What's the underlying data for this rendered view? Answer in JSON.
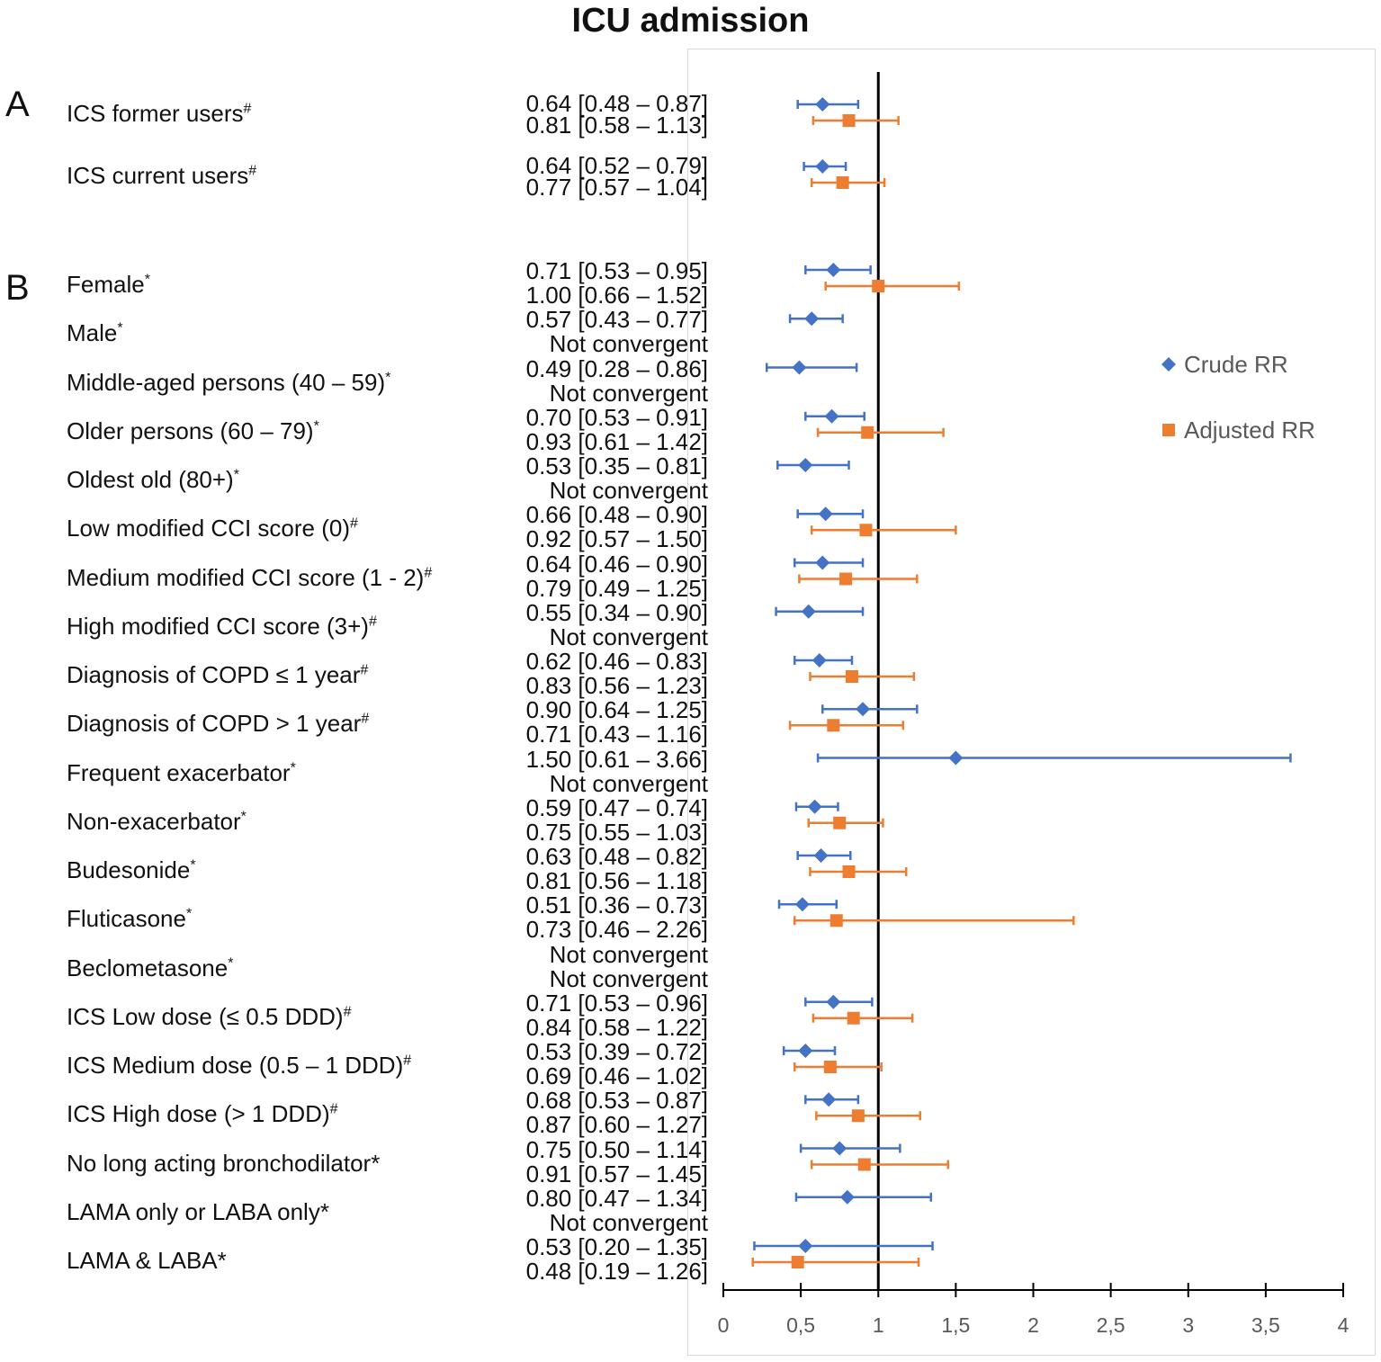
{
  "chart_data": {
    "type": "forest",
    "title": "ICU admission",
    "xlim": [
      0,
      4
    ],
    "x_ticks": [
      "0",
      "0,5",
      "1",
      "1,5",
      "2",
      "2,5",
      "3",
      "3,5",
      "4"
    ],
    "x_tick_values": [
      0,
      0.5,
      1,
      1.5,
      2,
      2.5,
      3,
      3.5,
      4
    ],
    "reference_line": 1,
    "legend": [
      {
        "name": "Crude RR",
        "marker": "diamond",
        "color": "#4472C4"
      },
      {
        "name": "Adjusted RR",
        "marker": "square",
        "color": "#ED7D31"
      }
    ],
    "sections": [
      {
        "label": "A",
        "rows": [
          {
            "label": "ICS former users",
            "sup": "#",
            "crude": {
              "text": "0.64 [0.48 – 0.87]",
              "est": 0.64,
              "lo": 0.48,
              "hi": 0.87
            },
            "adjusted": {
              "text": "0.81 [0.58 – 1.13]",
              "est": 0.81,
              "lo": 0.58,
              "hi": 1.13
            }
          },
          {
            "label": "ICS current users",
            "sup": "#",
            "crude": {
              "text": "0.64 [0.52 – 0.79]",
              "est": 0.64,
              "lo": 0.52,
              "hi": 0.79
            },
            "adjusted": {
              "text": "0.77 [0.57 – 1.04]",
              "est": 0.77,
              "lo": 0.57,
              "hi": 1.04
            }
          }
        ]
      },
      {
        "label": "B",
        "rows": [
          {
            "label": "Female",
            "sup": "*",
            "crude": {
              "text": "0.71 [0.53 – 0.95]",
              "est": 0.71,
              "lo": 0.53,
              "hi": 0.95
            },
            "adjusted": {
              "text": "1.00 [0.66 – 1.52]",
              "est": 1.0,
              "lo": 0.66,
              "hi": 1.52
            }
          },
          {
            "label": "Male",
            "sup": "*",
            "crude": {
              "text": "0.57 [0.43 – 0.77]",
              "est": 0.57,
              "lo": 0.43,
              "hi": 0.77
            },
            "adjusted": {
              "text": "Not convergent"
            }
          },
          {
            "label": "Middle-aged persons (40 – 59)",
            "sup": "*",
            "crude": {
              "text": "0.49 [0.28 – 0.86]",
              "est": 0.49,
              "lo": 0.28,
              "hi": 0.86
            },
            "adjusted": {
              "text": "Not convergent"
            }
          },
          {
            "label": "Older persons (60 – 79)",
            "sup": "*",
            "crude": {
              "text": "0.70 [0.53 – 0.91]",
              "est": 0.7,
              "lo": 0.53,
              "hi": 0.91
            },
            "adjusted": {
              "text": "0.93 [0.61 – 1.42]",
              "est": 0.93,
              "lo": 0.61,
              "hi": 1.42
            }
          },
          {
            "label": "Oldest old (80+)",
            "sup": "*",
            "crude": {
              "text": "0.53 [0.35 – 0.81]",
              "est": 0.53,
              "lo": 0.35,
              "hi": 0.81
            },
            "adjusted": {
              "text": "Not convergent"
            }
          },
          {
            "label": "Low modified CCI score (0)",
            "sup": "#",
            "crude": {
              "text": "0.66 [0.48 – 0.90]",
              "est": 0.66,
              "lo": 0.48,
              "hi": 0.9
            },
            "adjusted": {
              "text": "0.92 [0.57 – 1.50]",
              "est": 0.92,
              "lo": 0.57,
              "hi": 1.5
            }
          },
          {
            "label": "Medium modified CCI score (1 - 2)",
            "sup": "#",
            "crude": {
              "text": "0.64 [0.46 – 0.90]",
              "est": 0.64,
              "lo": 0.46,
              "hi": 0.9
            },
            "adjusted": {
              "text": "0.79 [0.49 – 1.25]",
              "est": 0.79,
              "lo": 0.49,
              "hi": 1.25
            }
          },
          {
            "label": "High modified CCI score (3+)",
            "sup": "#",
            "crude": {
              "text": "0.55 [0.34 – 0.90]",
              "est": 0.55,
              "lo": 0.34,
              "hi": 0.9
            },
            "adjusted": {
              "text": "Not convergent"
            }
          },
          {
            "label": "Diagnosis of  COPD ≤ 1 year",
            "sup": "#",
            "crude": {
              "text": "0.62 [0.46 – 0.83]",
              "est": 0.62,
              "lo": 0.46,
              "hi": 0.83
            },
            "adjusted": {
              "text": "0.83 [0.56 – 1.23]",
              "est": 0.83,
              "lo": 0.56,
              "hi": 1.23
            }
          },
          {
            "label": "Diagnosis of  COPD > 1 year",
            "sup": "#",
            "crude": {
              "text": "0.90 [0.64 – 1.25]",
              "est": 0.9,
              "lo": 0.64,
              "hi": 1.25
            },
            "adjusted": {
              "text": "0.71 [0.43 – 1.16]",
              "est": 0.71,
              "lo": 0.43,
              "hi": 1.16
            }
          },
          {
            "label": "Frequent exacerbator",
            "sup": "*",
            "crude": {
              "text": "1.50 [0.61 – 3.66]",
              "est": 1.5,
              "lo": 0.61,
              "hi": 3.66
            },
            "adjusted": {
              "text": "Not convergent"
            }
          },
          {
            "label": "Non-exacerbator",
            "sup": "*",
            "crude": {
              "text": "0.59 [0.47 – 0.74]",
              "est": 0.59,
              "lo": 0.47,
              "hi": 0.74
            },
            "adjusted": {
              "text": "0.75 [0.55 – 1.03]",
              "est": 0.75,
              "lo": 0.55,
              "hi": 1.03
            }
          },
          {
            "label": "Budesonide",
            "sup": "*",
            "crude": {
              "text": "0.63 [0.48 – 0.82]",
              "est": 0.63,
              "lo": 0.48,
              "hi": 0.82
            },
            "adjusted": {
              "text": "0.81 [0.56 – 1.18]",
              "est": 0.81,
              "lo": 0.56,
              "hi": 1.18
            }
          },
          {
            "label": "Fluticasone",
            "sup": "*",
            "crude": {
              "text": "0.51 [0.36 – 0.73]",
              "est": 0.51,
              "lo": 0.36,
              "hi": 0.73
            },
            "adjusted": {
              "text": "0.73 [0.46 – 2.26]",
              "est": 0.73,
              "lo": 0.46,
              "hi": 2.26
            }
          },
          {
            "label": "Beclometasone",
            "sup": "*",
            "crude": {
              "text": "Not convergent"
            },
            "adjusted": {
              "text": "Not convergent"
            }
          },
          {
            "label": "ICS Low dose (≤ 0.5 DDD)",
            "sup": "#",
            "crude": {
              "text": "0.71 [0.53 – 0.96]",
              "est": 0.71,
              "lo": 0.53,
              "hi": 0.96
            },
            "adjusted": {
              "text": "0.84 [0.58 – 1.22]",
              "est": 0.84,
              "lo": 0.58,
              "hi": 1.22
            }
          },
          {
            "label": "ICS Medium dose (0.5 – 1 DDD)",
            "sup": "#",
            "crude": {
              "text": "0.53 [0.39 – 0.72]",
              "est": 0.53,
              "lo": 0.39,
              "hi": 0.72
            },
            "adjusted": {
              "text": "0.69 [0.46 – 1.02]",
              "est": 0.69,
              "lo": 0.46,
              "hi": 1.02
            }
          },
          {
            "label": "ICS High dose (> 1 DDD)",
            "sup": "#",
            "crude": {
              "text": "0.68 [0.53 – 0.87]",
              "est": 0.68,
              "lo": 0.53,
              "hi": 0.87
            },
            "adjusted": {
              "text": "0.87 [0.60 – 1.27]",
              "est": 0.87,
              "lo": 0.6,
              "hi": 1.27
            }
          },
          {
            "label": "No long acting bronchodilator*",
            "sup": "",
            "crude": {
              "text": "0.75 [0.50 – 1.14]",
              "est": 0.75,
              "lo": 0.5,
              "hi": 1.14
            },
            "adjusted": {
              "text": "0.91 [0.57 – 1.45]",
              "est": 0.91,
              "lo": 0.57,
              "hi": 1.45
            }
          },
          {
            "label": "LAMA only or LABA only*",
            "sup": "",
            "crude": {
              "text": "0.80 [0.47 – 1.34]",
              "est": 0.8,
              "lo": 0.47,
              "hi": 1.34
            },
            "adjusted": {
              "text": "Not convergent"
            }
          },
          {
            "label": "LAMA & LABA*",
            "sup": "",
            "crude": {
              "text": "0.53 [0.20 – 1.35]",
              "est": 0.53,
              "lo": 0.2,
              "hi": 1.35
            },
            "adjusted": {
              "text": "0.48 [0.19 – 1.26]",
              "est": 0.48,
              "lo": 0.19,
              "hi": 1.26
            }
          }
        ]
      }
    ]
  }
}
